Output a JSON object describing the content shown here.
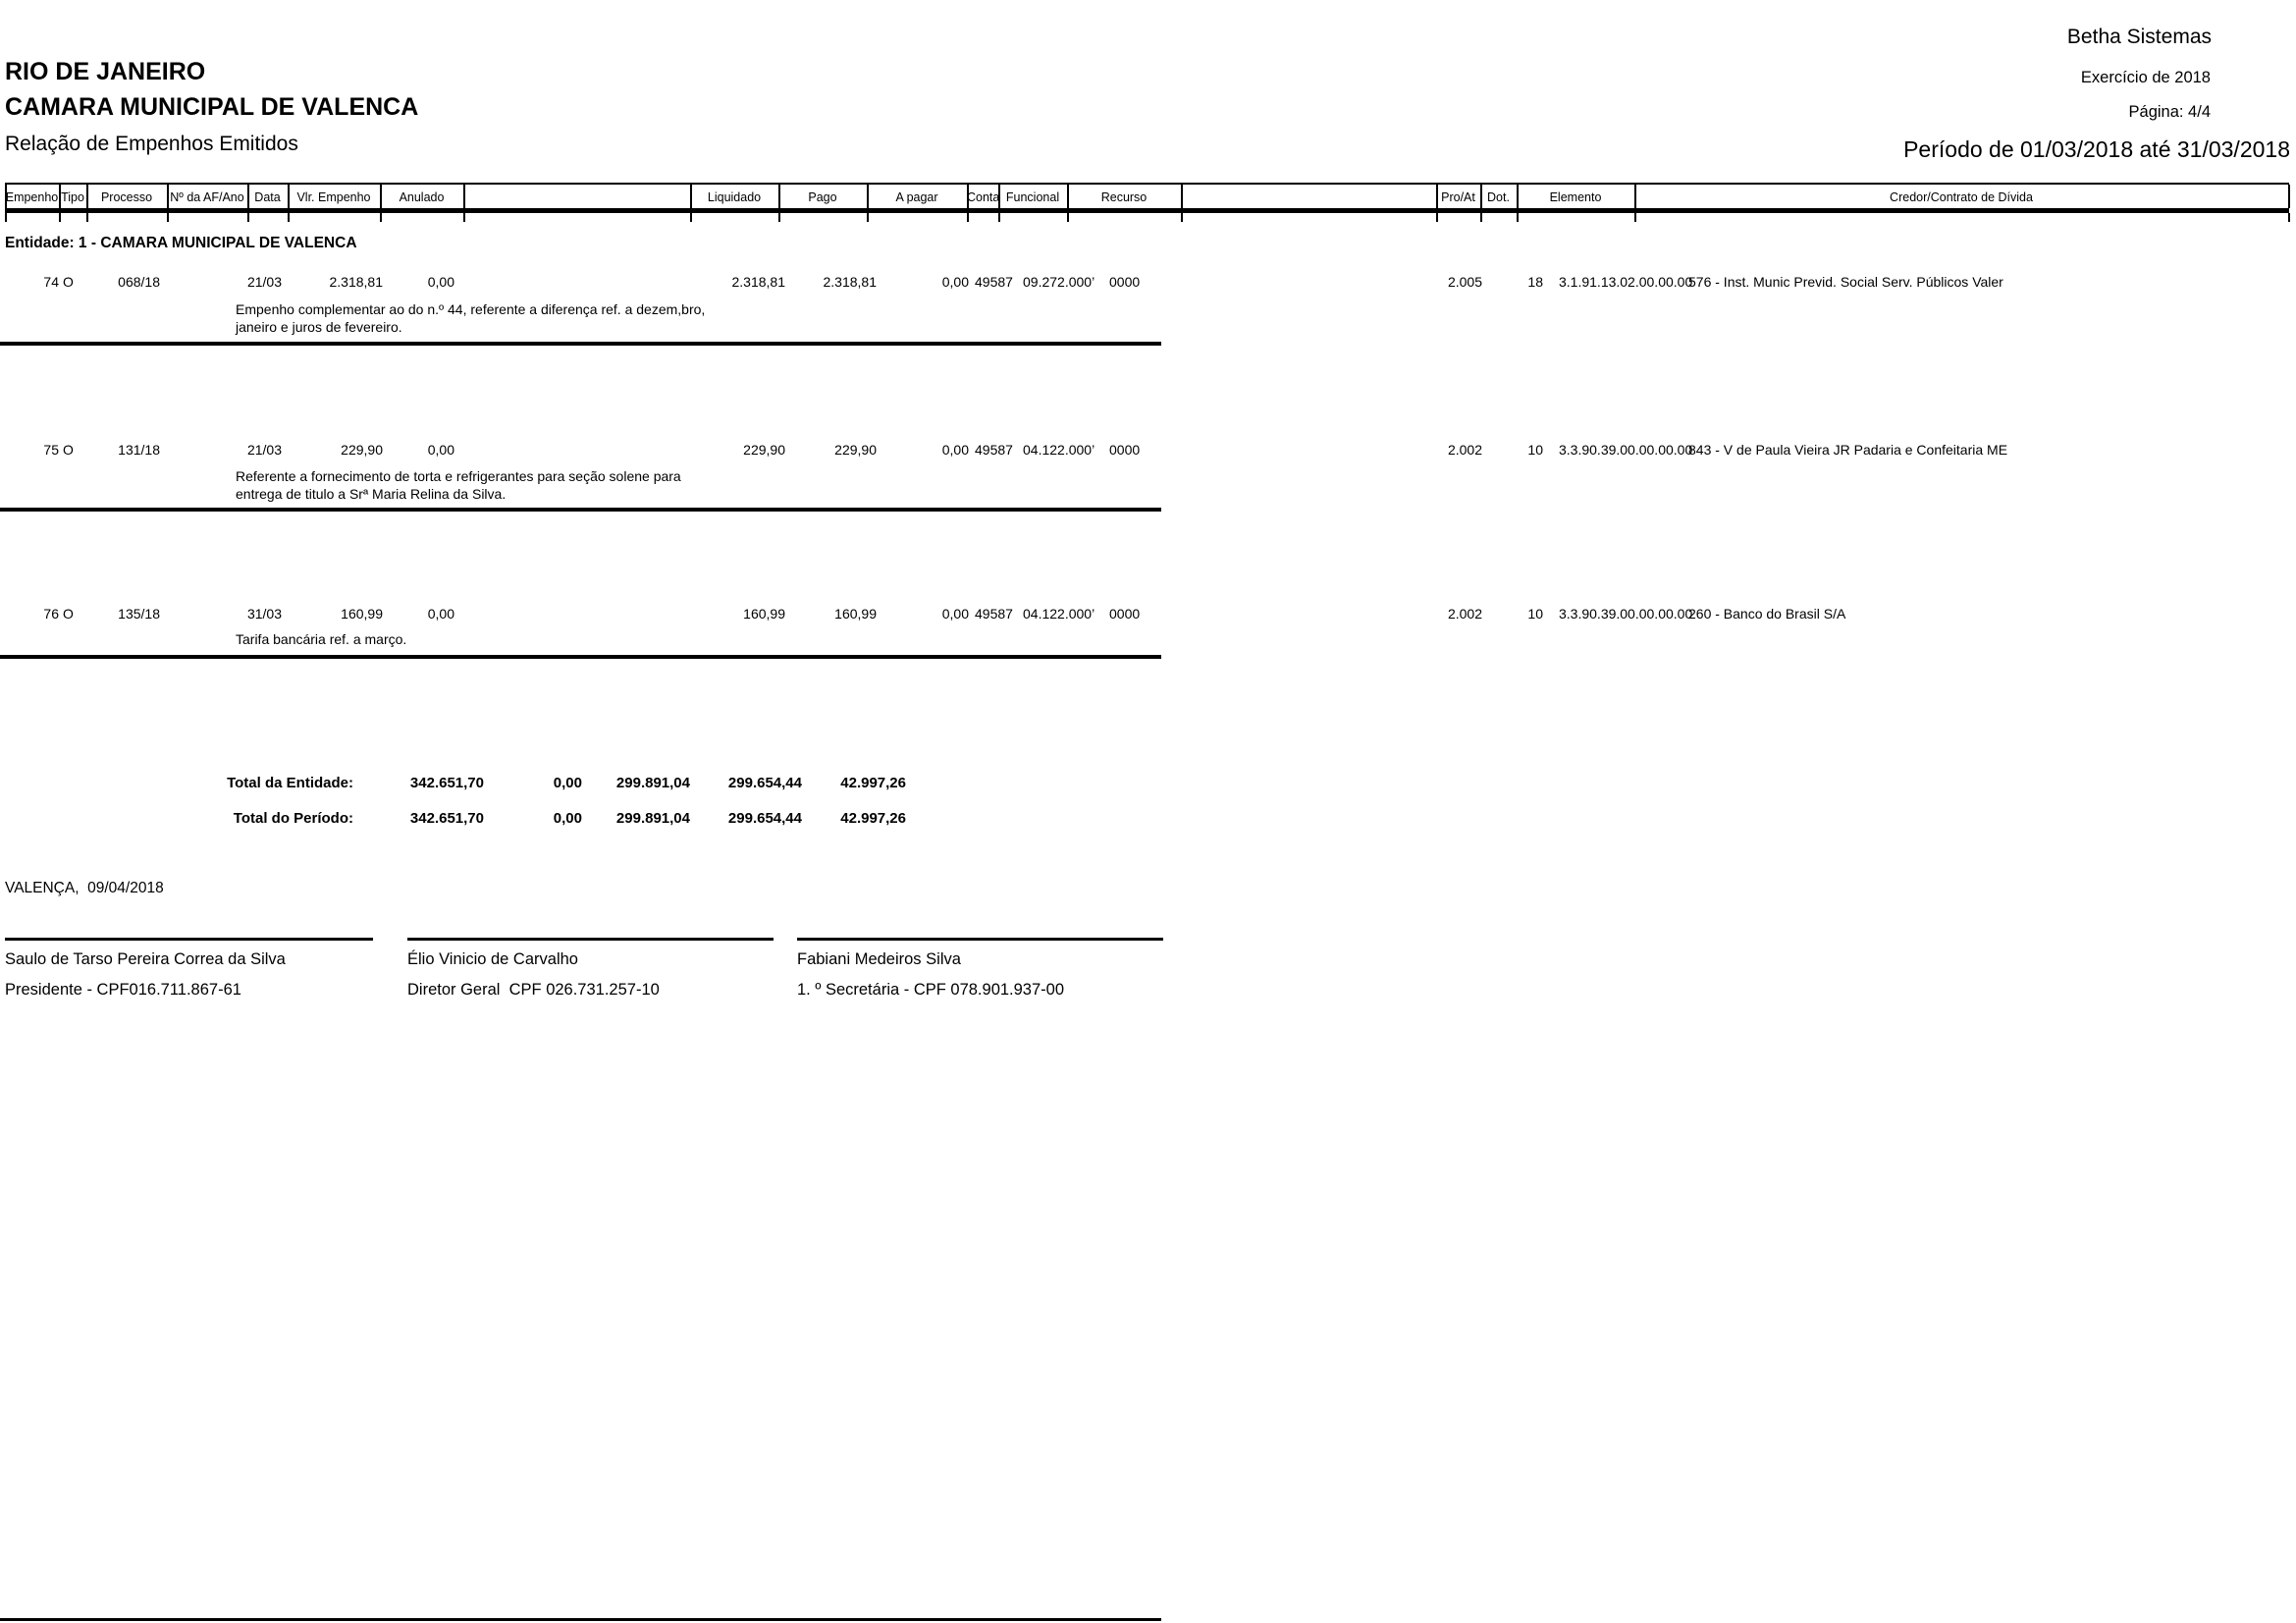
{
  "page_header": {
    "vendor": "Betha Sistemas",
    "exercise": "Exercício de 2018",
    "page_label": "Página: 4/4",
    "period": "Período de 01/03/2018 até 31/03/2018",
    "state": "RIO DE JANEIRO",
    "entity": "CAMARA MUNICIPAL DE VALENCA",
    "title": "Relação de Empenhos Emitidos"
  },
  "table": {
    "columns": [
      "Empenho",
      "Tipo",
      "Processo",
      "Nº da AF/Ano",
      "Data",
      "Vlr. Empenho",
      "Anulado",
      "Liquidado",
      "Pago",
      "A pagar",
      "Conta",
      "Funcional",
      "Recurso",
      "Pro/At",
      "Dot.",
      "Elemento",
      "Credor/Contrato de Dívida"
    ],
    "entity_line": "Entidade: 1 - CAMARA MUNICIPAL DE VALENCA",
    "rows": [
      {
        "empenho": "74",
        "tipo": "O",
        "processo": "068/18",
        "af_ano": "",
        "data": "21/03",
        "vlr_empenho": "2.318,81",
        "anulado": "0,00",
        "liquidado": "2.318,81",
        "pago": "2.318,81",
        "a_pagar": "0,00",
        "conta": "49587",
        "funcional": "09.272.000’",
        "recurso": "0000",
        "pro_at": "2.005",
        "dot": "18",
        "elemento": "3.1.91.13.02.00.00.00",
        "credor": "576 - Inst. Munic Previd. Social Serv. Públicos Valer",
        "historico": "Empenho complementar ao do n.º 44, referente a diferença ref. a dezem,bro,\njaneiro e juros de fevereiro."
      },
      {
        "empenho": "75",
        "tipo": "O",
        "processo": "131/18",
        "af_ano": "",
        "data": "21/03",
        "vlr_empenho": "229,90",
        "anulado": "0,00",
        "liquidado": "229,90",
        "pago": "229,90",
        "a_pagar": "0,00",
        "conta": "49587",
        "funcional": "04.122.000’",
        "recurso": "0000",
        "pro_at": "2.002",
        "dot": "10",
        "elemento": "3.3.90.39.00.00.00.00",
        "credor": "843 - V de Paula Vieira JR Padaria e Confeitaria ME",
        "historico": "Referente a fornecimento de torta e refrigerantes para seção solene para\nentrega de titulo a Srª Maria Relina da Silva."
      },
      {
        "empenho": "76",
        "tipo": "O",
        "processo": "135/18",
        "af_ano": "",
        "data": "31/03",
        "vlr_empenho": "160,99",
        "anulado": "0,00",
        "liquidado": "160,99",
        "pago": "160,99",
        "a_pagar": "0,00",
        "conta": "49587",
        "funcional": "04.122.000’",
        "recurso": "0000",
        "pro_at": "2.002",
        "dot": "10",
        "elemento": "3.3.90.39.00.00.00.00",
        "credor": "260 - Banco do Brasil S/A",
        "historico": "Tarifa bancária ref. a março."
      }
    ]
  },
  "totals": {
    "entity_label": "Total da Entidade:",
    "period_label": "Total do Período:",
    "entity": {
      "vlr_empenho": "342.651,70",
      "anulado": "0,00",
      "liquidado": "299.891,04",
      "pago": "299.654,44",
      "a_pagar": "42.997,26"
    },
    "period": {
      "vlr_empenho": "342.651,70",
      "anulado": "0,00",
      "liquidado": "299.891,04",
      "pago": "299.654,44",
      "a_pagar": "42.997,26"
    }
  },
  "footer": {
    "city_date": "VALENÇA,  09/04/2018",
    "signatures": [
      {
        "name": "Saulo de Tarso Pereira Correa da Silva",
        "role": "Presidente - CPF016.711.867-61"
      },
      {
        "name": "Élio Vinicio de Carvalho",
        "role": "Diretor Geral  CPF 026.731.257-10"
      },
      {
        "name": "Fabiani Medeiros Silva",
        "role": "1. º Secretária - CPF 078.901.937-00"
      }
    ]
  }
}
